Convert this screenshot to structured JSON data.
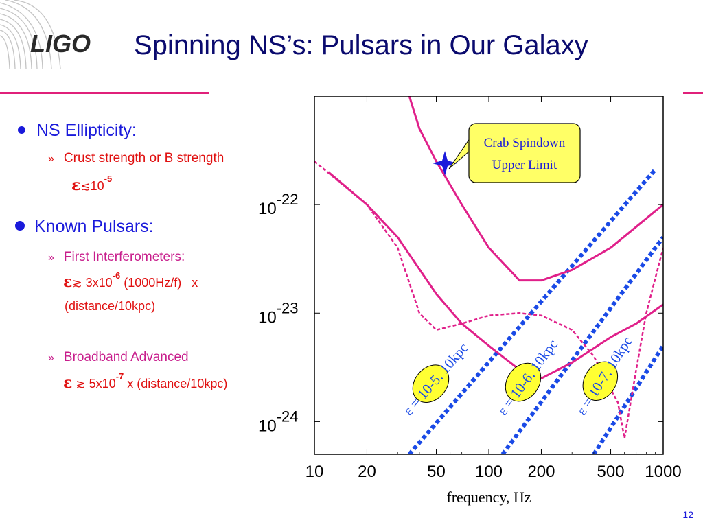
{
  "slide": {
    "logo_text": "LIGO",
    "title": "Spinning NS’s: Pulsars in Our Galaxy",
    "page_number": "12"
  },
  "bullets": {
    "ellipticity": {
      "label": "NS Ellipticity:",
      "sub_label": "Crust strength or B strength",
      "eps_symbol": "ε",
      "relation": "≲",
      "base": "10",
      "exponent": "-5"
    },
    "known_pulsars": {
      "label": "Known Pulsars:",
      "first": {
        "label": "First Interferometers:",
        "eps_symbol": "ε",
        "relation": "≳",
        "mantissa": "3x10",
        "exponent": "-6",
        "rest": " (1000Hz/f)   x",
        "line2": "(distance/10kpc)"
      },
      "advanced": {
        "label": "Broadband  Advanced",
        "eps_symbol": "ε",
        "relation": "≳",
        "mantissa": "5x10",
        "exponent": "-7",
        "rest": " x (distance/10kpc)"
      }
    }
  },
  "chart_data": {
    "type": "line",
    "xlabel": "frequency, Hz",
    "xscale": "log",
    "yscale": "log",
    "xlim": [
      10,
      1000
    ],
    "ylim": [
      5e-25,
      1e-21
    ],
    "x_ticks": [
      10,
      20,
      50,
      100,
      200,
      500,
      1000
    ],
    "x_tick_labels": [
      "10",
      "20",
      "50",
      "100",
      "200",
      "500",
      "1000"
    ],
    "y_ticks": [
      1e-22,
      1e-23,
      1e-24
    ],
    "y_tick_labels": [
      {
        "base": "10",
        "exp": "-22"
      },
      {
        "base": "10",
        "exp": "-23"
      },
      {
        "base": "10",
        "exp": "-24"
      }
    ],
    "series": [
      {
        "style": "solid",
        "color": "#e0208a",
        "x": [
          35,
          40,
          50,
          70,
          100,
          150,
          200,
          300,
          500,
          1000
        ],
        "y": [
          1e-21,
          5e-22,
          2.5e-22,
          1e-22,
          4e-23,
          2e-23,
          2e-23,
          2.5e-23,
          4e-23,
          1e-22
        ]
      },
      {
        "style": "solid",
        "color": "#e0208a",
        "x": [
          12,
          20,
          30,
          50,
          70,
          100,
          150,
          200,
          300,
          500,
          700,
          1000
        ],
        "y": [
          2e-22,
          1e-22,
          5e-23,
          1.5e-23,
          8e-24,
          5e-24,
          3e-24,
          2.5e-24,
          3.5e-24,
          6e-24,
          8e-24,
          1.2e-23
        ]
      },
      {
        "style": "dashed",
        "color": "#e0208a",
        "x": [
          10,
          20,
          30,
          40,
          50,
          70,
          100,
          150,
          200,
          300,
          400,
          500,
          550,
          600,
          700,
          800,
          1000
        ],
        "y": [
          2.5e-22,
          1e-22,
          4e-23,
          1e-23,
          7e-24,
          8e-24,
          9.5e-24,
          1e-23,
          9.5e-24,
          7e-24,
          4e-24,
          2e-24,
          1.5e-24,
          7e-25,
          3e-24,
          1e-23,
          4e-23
        ]
      }
    ],
    "reference_lines": [
      {
        "label_eps": "ε = ",
        "label_val": "10-5",
        "label_rest": ", 10kpc",
        "x": [
          35,
          900
        ],
        "y": [
          5e-25,
          2.1e-22
        ]
      },
      {
        "label_eps": "ε = ",
        "label_val": "10-6",
        "label_rest": ", 10kpc",
        "x": [
          120,
          1000
        ],
        "y": [
          5e-25,
          5e-23
        ]
      },
      {
        "label_eps": "ε = ",
        "label_val": "10-7",
        "label_rest": ", 10kpc",
        "x": [
          400,
          1000
        ],
        "y": [
          5e-25,
          5e-24
        ]
      }
    ],
    "marker": {
      "x": 56,
      "y": 2.4e-22,
      "shape": "star",
      "color": "#1a1adb"
    },
    "annotation": {
      "line1": "Crab Spindown",
      "line2": "Upper Limit",
      "background": "#ffff66"
    },
    "colors": {
      "curves": "#e0208a",
      "reference": "#1a4ae6",
      "frame": "#000000",
      "label_circle": "#ffff33"
    }
  }
}
